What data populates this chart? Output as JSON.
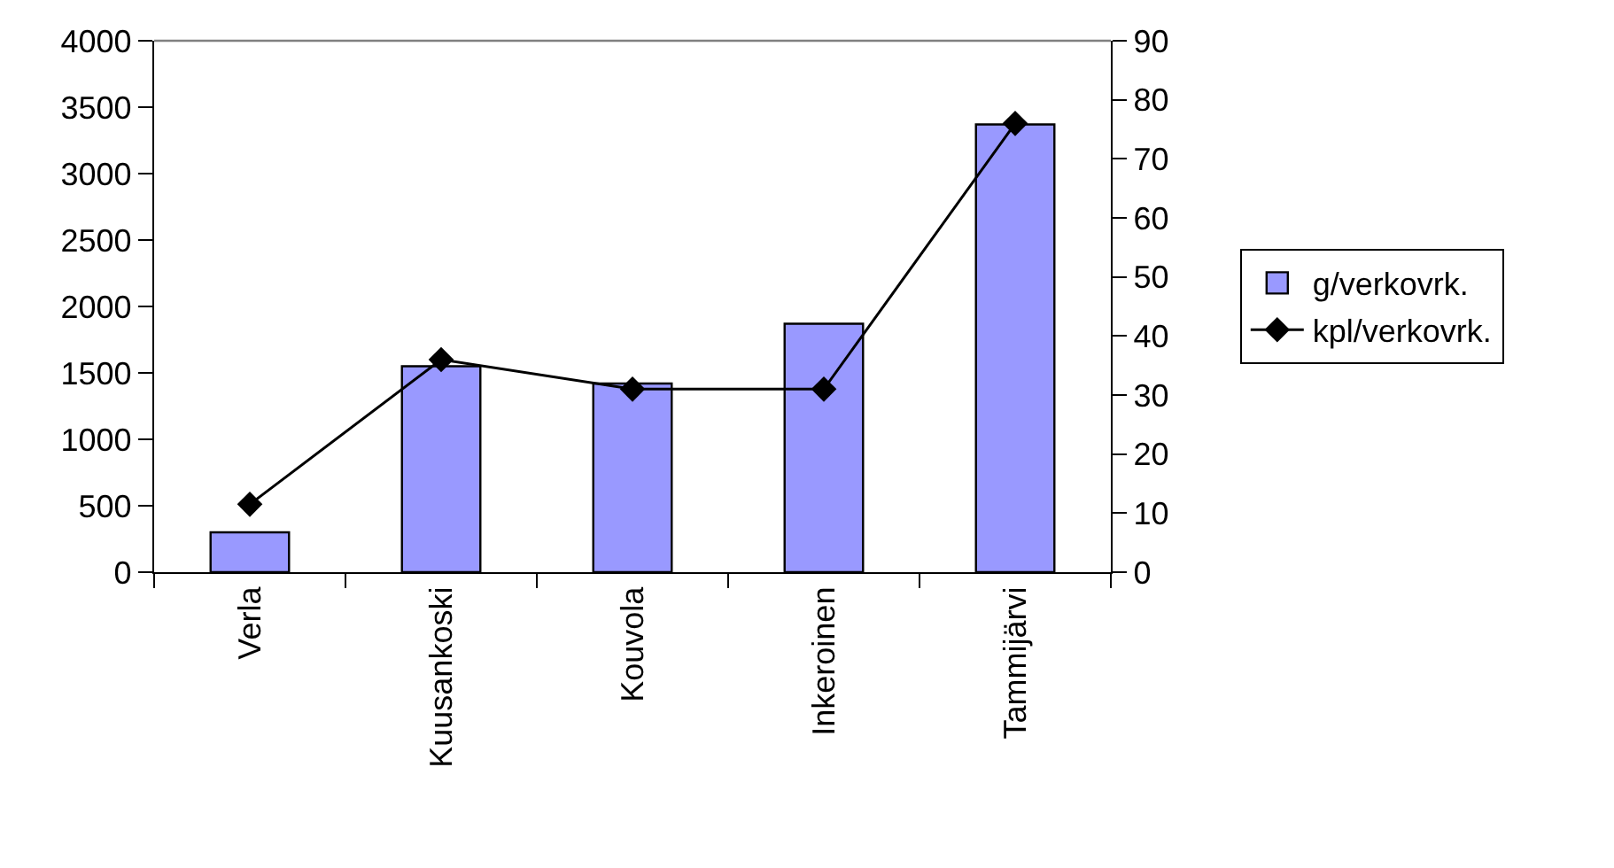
{
  "chart_data": {
    "type": "bar",
    "categories": [
      "Verla",
      "Kuusankoski",
      "Kouvola",
      "Inkeroinen",
      "Tammijärvi"
    ],
    "series": [
      {
        "name": "g/verkovrk.",
        "color": "#9999ff",
        "values": [
          300,
          1550,
          1420,
          1870,
          3370
        ]
      },
      {
        "name": "kpl/verkovrk.",
        "type": "line",
        "axis": "y2",
        "color": "#000000",
        "values": [
          11.5,
          36,
          31,
          31,
          76
        ]
      }
    ],
    "ylim": [
      0,
      4000
    ],
    "yticks": [
      0,
      500,
      1000,
      1500,
      2000,
      2500,
      3000,
      3500,
      4000
    ],
    "y2lim": [
      0,
      90
    ],
    "y2ticks": [
      0,
      10,
      20,
      30,
      40,
      50,
      60,
      70,
      80,
      90
    ],
    "grid": false,
    "legend": "right",
    "marker": "diamond"
  }
}
